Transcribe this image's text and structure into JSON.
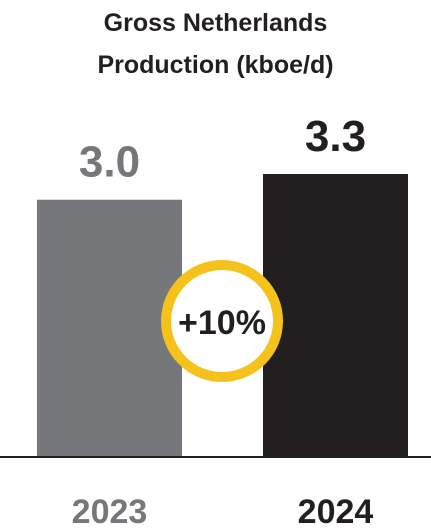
{
  "chart_data": {
    "type": "bar",
    "title": "Gross Netherlands\nProduction (kboe/d)",
    "categories": [
      "2023",
      "2024"
    ],
    "values": [
      3.0,
      3.3
    ],
    "value_labels": [
      "3.0",
      "3.3"
    ],
    "ylim": [
      0,
      3.3
    ],
    "grid": false,
    "legend": "none",
    "annotation": "+10%",
    "colors": {
      "bar_2023": "#76777a",
      "bar_2024": "#231f20",
      "label_2023": "#76777a",
      "label_2024": "#231f20",
      "title": "#231f20",
      "badge_ring": "#f5c21b",
      "badge_fill": "#ffffff",
      "badge_text": "#231f20",
      "baseline": "#231f20"
    }
  }
}
